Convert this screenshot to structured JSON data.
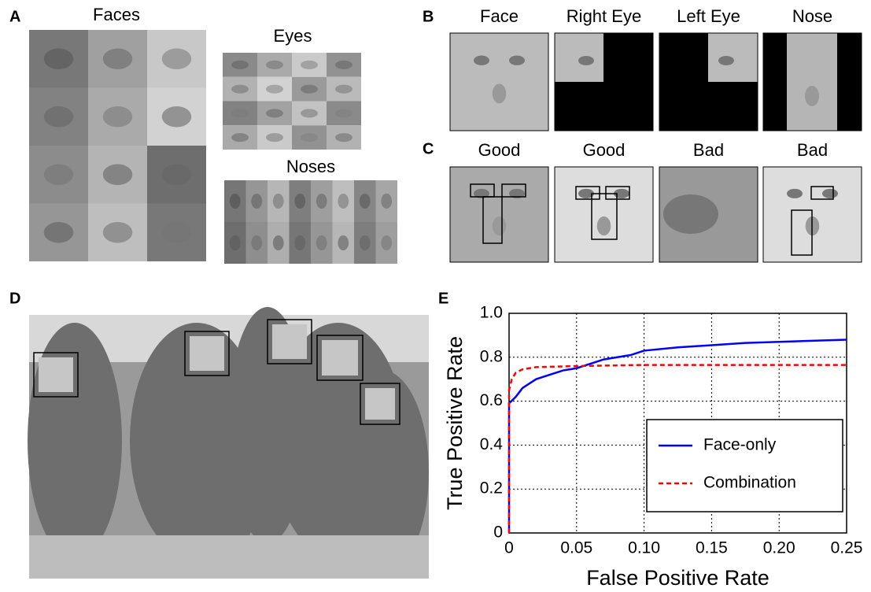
{
  "panels": {
    "a": "A",
    "b": "B",
    "c": "C",
    "d": "D",
    "e": "E"
  },
  "panel_a": {
    "faces": "Faces",
    "eyes": "Eyes",
    "noses": "Noses"
  },
  "panel_b": {
    "titles": [
      "Face",
      "Right Eye",
      "Left Eye",
      "Nose"
    ]
  },
  "panel_c": {
    "titles": [
      "Good",
      "Good",
      "Bad",
      "Bad"
    ]
  },
  "chart_data": {
    "type": "line",
    "xlabel": "False Positive Rate",
    "ylabel": "True Positive Rate",
    "xlim": [
      0,
      0.25
    ],
    "ylim": [
      0,
      1
    ],
    "xticks": [
      0,
      0.05,
      {
        "value": 0.1,
        "label": "0.10"
      },
      0.15,
      {
        "value": 0.2,
        "label": "0.20"
      },
      0.25
    ],
    "yticks": [
      0,
      0.2,
      0.4,
      0.6,
      0.8,
      {
        "value": 1,
        "label": "1.0"
      }
    ],
    "grid": true,
    "legend": "lower right",
    "series": [
      {
        "name": "Face-only",
        "color": "#0000ff",
        "dash": false,
        "x": [
          0,
          0,
          0.005,
          0.01,
          0.02,
          0.03,
          0.04,
          0.05,
          0.06,
          0.07,
          0.09,
          0.1,
          0.125,
          0.15,
          0.175,
          0.2,
          0.25
        ],
        "values": [
          0,
          0.59,
          0.62,
          0.66,
          0.7,
          0.72,
          0.74,
          0.75,
          0.77,
          0.79,
          0.81,
          0.83,
          0.845,
          0.855,
          0.865,
          0.87,
          0.88
        ]
      },
      {
        "name": "Combination",
        "color": "#ff0000",
        "dash": true,
        "x": [
          0,
          0,
          0.002,
          0.005,
          0.01,
          0.02,
          0.05,
          0.1,
          0.25
        ],
        "values": [
          0,
          0.65,
          0.7,
          0.73,
          0.745,
          0.755,
          0.76,
          0.765,
          0.765
        ]
      }
    ]
  }
}
